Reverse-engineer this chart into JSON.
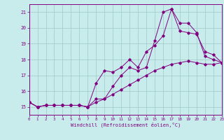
{
  "xlabel": "Windchill (Refroidissement éolien,°C)",
  "bg_color": "#c8ecec",
  "grid_color": "#a0c8c8",
  "line_color": "#800080",
  "xlim": [
    0,
    23
  ],
  "ylim": [
    14.5,
    21.5
  ],
  "yticks": [
    15,
    16,
    17,
    18,
    19,
    20,
    21
  ],
  "xticks": [
    0,
    1,
    2,
    3,
    4,
    5,
    6,
    7,
    8,
    9,
    10,
    11,
    12,
    13,
    14,
    15,
    16,
    17,
    18,
    19,
    20,
    21,
    22,
    23
  ],
  "line1_x": [
    0,
    1,
    2,
    3,
    4,
    5,
    6,
    7,
    8,
    9,
    10,
    11,
    12,
    13,
    14,
    15,
    16,
    17,
    18,
    19,
    20,
    21,
    22,
    23
  ],
  "line1_y": [
    15.3,
    15.0,
    15.1,
    15.1,
    15.1,
    15.1,
    15.1,
    15.0,
    15.3,
    15.5,
    15.8,
    16.1,
    16.4,
    16.7,
    17.0,
    17.3,
    17.5,
    17.7,
    17.8,
    17.9,
    17.8,
    17.7,
    17.7,
    17.8
  ],
  "line2_x": [
    0,
    1,
    2,
    3,
    4,
    5,
    6,
    7,
    8,
    9,
    10,
    11,
    12,
    13,
    14,
    15,
    16,
    17,
    18,
    19,
    20,
    21,
    22,
    23
  ],
  "line2_y": [
    15.3,
    15.0,
    15.1,
    15.1,
    15.1,
    15.1,
    15.1,
    15.0,
    16.5,
    17.3,
    17.2,
    17.5,
    18.0,
    17.5,
    18.5,
    18.9,
    19.5,
    21.2,
    19.8,
    19.7,
    19.6,
    18.5,
    18.3,
    17.8
  ],
  "line3_x": [
    0,
    1,
    2,
    3,
    4,
    5,
    6,
    7,
    8,
    9,
    10,
    11,
    12,
    13,
    14,
    15,
    16,
    17,
    18,
    19,
    20,
    21,
    22,
    23
  ],
  "line3_y": [
    15.3,
    15.0,
    15.1,
    15.1,
    15.1,
    15.1,
    15.1,
    15.0,
    15.5,
    15.5,
    16.3,
    17.0,
    17.5,
    17.3,
    17.5,
    19.2,
    21.0,
    21.2,
    20.3,
    20.3,
    19.7,
    18.2,
    18.0,
    17.8
  ]
}
